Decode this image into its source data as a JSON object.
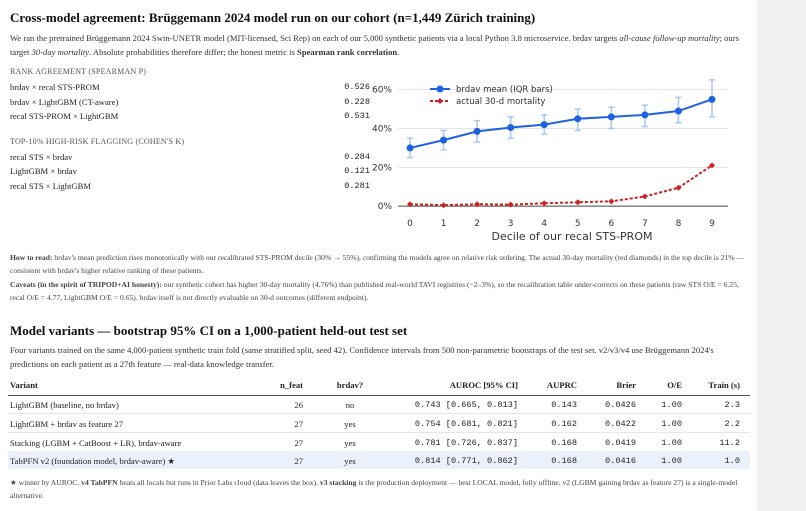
{
  "header": {
    "title": "Cross-model agreement: Brüggemann 2024 model run on our cohort (n=1,449 Zürich training)",
    "intro": [
      "We ran the pretrained Brüggemann 2024 Swin-UNETR model (MIT-licensed, Sci Rep) on each of our 5,000 synthetic patients via a local Python 3.8 microservice. brdav targets ",
      "all-cause follow-up mortality",
      "; ours target ",
      "30-day mortality",
      ". Absolute probabilities therefore differ; the honest metric is ",
      "Spearman rank correlation",
      "."
    ]
  },
  "agreement": [
    {
      "caption": "RANK AGREEMENT (SPEARMAN Ρ)",
      "rows": [
        [
          "brdav × recal STS-PROM",
          "0.526"
        ],
        [
          "brdav × LightGBM (CT-aware)",
          "0.228"
        ],
        [
          "recal STS-PROM × LightGBM",
          "0.531"
        ]
      ]
    },
    {
      "caption": "TOP-10% HIGH-RISK FLAGGING (COHEN'S Κ)",
      "rows": [
        [
          "recal STS × brdav",
          "0.284"
        ],
        [
          "LightGBM × brdav",
          "0.121"
        ],
        [
          "recal STS × LightGBM",
          "0.281"
        ]
      ]
    }
  ],
  "chart_data": {
    "type": "line",
    "x_label": "Decile of our recal STS-PROM",
    "categories": [
      "0",
      "1",
      "2",
      "3",
      "4",
      "5",
      "6",
      "7",
      "8",
      "9"
    ],
    "series": [
      {
        "name": "brdav mean (IQR bars)",
        "color": "#1f62e0",
        "values": [
          30,
          34,
          38.5,
          40.5,
          42,
          45,
          46,
          47,
          49,
          55
        ],
        "iqr_low": [
          25,
          29,
          33,
          35,
          37,
          39,
          40,
          41,
          43,
          46
        ],
        "iqr_high": [
          35,
          39,
          44,
          46,
          47,
          50,
          51,
          52,
          56,
          65
        ]
      },
      {
        "name": "actual 30-d mortality",
        "color": "#cc2222",
        "values": [
          1,
          0.5,
          1,
          0.8,
          1.5,
          2,
          2.5,
          5,
          9.5,
          21
        ]
      }
    ],
    "ylim": [
      -3,
      66
    ],
    "yticks": [
      {
        "value": 0,
        "label": "0%"
      },
      {
        "value": 20,
        "label": "20%"
      },
      {
        "value": 40,
        "label": "40%"
      },
      {
        "value": 60,
        "label": "60%"
      }
    ],
    "grid": true,
    "legend": "top-left"
  },
  "notes": {
    "how_to_read": [
      "How to read:",
      " brdav's mean prediction rises monotonically with our recalibrated STS-PROM decile (30% → 55%), confirming the models agree on relative risk ordering. The actual 30-day mortality (red diamonds) in the top decile is 21% — consistent with brdav's higher relative ranking of these patients."
    ],
    "caveats": [
      "Caveats (in the spirit of TRIPOD+AI honesty):",
      " our synthetic cohort has higher 30-day mortality (4.76%) than published real-world TAVI registries (~2–3%), so the recalibration table under-corrects on these patients (raw STS O/E = 6.25, recal O/E = 4.77, LightGBM O/E = 0.65). brdav itself is not directly evaluable on 30-d outcomes (different endpoint)."
    ]
  },
  "variants": {
    "title": "Model variants — bootstrap 95% CI on a 1,000-patient held-out test set",
    "intro": "Four variants trained on the same 4,000-patient synthetic train fold (same stratified split, seed 42). Confidence intervals from 500 non-parametric bootstraps of the test set. v2/v3/v4 use Brüggemann 2024's predictions on each patient as a 27th feature — real-data knowledge transfer.",
    "table": {
      "header": [
        "Variant",
        "n_feat",
        "brdav?",
        "AUROC [95% CI]",
        "AUPRC",
        "Brier",
        "O/E",
        "Train (s)"
      ],
      "rows": [
        [
          "LightGBM (baseline, no brdav)",
          "26",
          "no",
          "0.743 [0.665, 0.813]",
          "0.143",
          "0.0426",
          "1.00",
          "2.3"
        ],
        [
          "LightGBM + brdav as feature 27",
          "27",
          "yes",
          "0.754 [0.681, 0.821]",
          "0.162",
          "0.0422",
          "1.00",
          "2.2"
        ],
        [
          "Stacking (LGBM + CatBoost + LR), brdav-aware",
          "27",
          "yes",
          "0.781 [0.726, 0.837]",
          "0.168",
          "0.0419",
          "1.00",
          "11.2"
        ],
        [
          "TabPFN v2 (foundation model, brdav-aware) ★",
          "27",
          "yes",
          "0.814 [0.771, 0.862]",
          "0.168",
          "0.0416",
          "1.00",
          "1.0"
        ]
      ]
    },
    "footnote": [
      "★ winner by AUROC. ",
      "v4 TabPFN",
      " beats all locals but runs in Prior Labs cloud (data leaves the box). ",
      "v3 stacking",
      " is the production deployment — best LOCAL model, fully offline. v2 (LGBM gaining brdav as feature 27) is a single-model alternative."
    ]
  }
}
